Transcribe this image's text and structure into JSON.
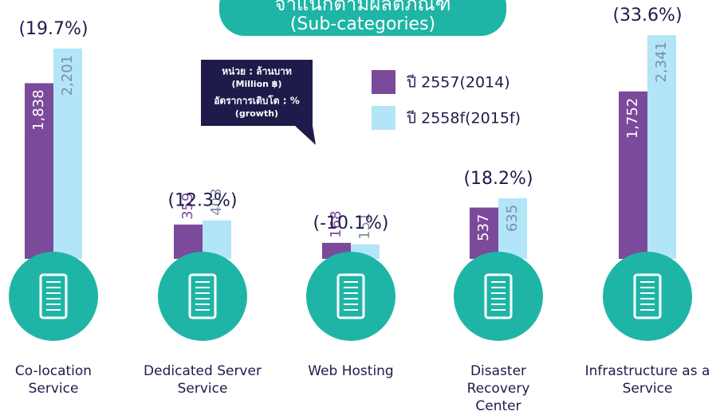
{
  "chart_data": {
    "type": "bar",
    "title": "จำแนกตามผลิตภัณฑ์",
    "subtitle": "(Sub-categories)",
    "note": [
      "หน่วย : ล้านบาท",
      "(Million ฿)",
      "อัตราการเติบโต : %",
      "(growth)"
    ],
    "categories": [
      "Co-location Service",
      "Dedicated Server Service",
      "Web Hosting",
      "Disaster Recovery Center",
      "Infrastructure as a Service"
    ],
    "series": [
      {
        "name": "ปี 2557(2014)",
        "color": "#7b4a9a",
        "values": [
          1838,
          359,
          168,
          537,
          1752
        ],
        "value_labels": [
          "1,838",
          "359",
          "168",
          "537",
          "1,752"
        ]
      },
      {
        "name": "ปี 2558f(2015f)",
        "color": "#b3e5f8",
        "values": [
          2201,
          403,
          151,
          635,
          2341
        ],
        "value_labels": [
          "2,201",
          "403",
          "151",
          "635",
          "2,341"
        ]
      }
    ],
    "growth": [
      19.7,
      12.3,
      -10.1,
      18.2,
      33.6
    ],
    "growth_labels": [
      "(19.7%)",
      "(12.3%)",
      "(-10.1%)",
      "(18.2%)",
      "(33.6%)"
    ],
    "ylim": [
      0,
      2400
    ],
    "icon_color": "#1fb5a6"
  }
}
